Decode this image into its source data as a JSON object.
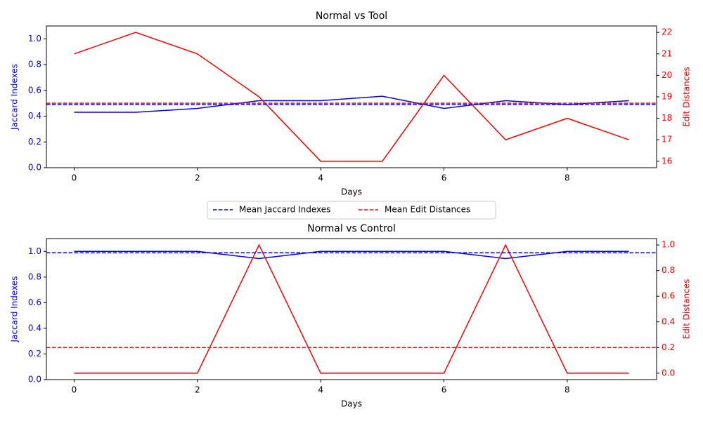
{
  "chart_data": [
    {
      "type": "line",
      "title": "Normal vs Tool",
      "xlabel": "Days",
      "ylabel": "Jaccard Indexes",
      "y2label": "Edit Distances",
      "x": [
        0,
        1,
        2,
        3,
        4,
        5,
        6,
        7,
        8,
        9
      ],
      "series": [
        {
          "name": "Jaccard Indexes",
          "color": "#0000ff",
          "axis": "y",
          "values": [
            0.43,
            0.43,
            0.46,
            0.52,
            0.52,
            0.555,
            0.46,
            0.52,
            0.49,
            0.52
          ]
        },
        {
          "name": "Edit Distances",
          "color": "#ff0000",
          "axis": "y2",
          "values": [
            21,
            22,
            21,
            19,
            16,
            16,
            20,
            17,
            18,
            17
          ]
        }
      ],
      "hlines": [
        {
          "name": "Mean Jaccard Indexes",
          "color": "#0000ff",
          "axis": "y",
          "value": 0.49
        },
        {
          "name": "Mean Edit Distances",
          "color": "#ff0000",
          "axis": "y2",
          "value": 18.7
        }
      ],
      "xlim": [
        -0.45,
        9.45
      ],
      "xticks": [
        0,
        2,
        4,
        6,
        8
      ],
      "ylim": [
        0,
        1.1
      ],
      "yticks": [
        {
          "value": 0,
          "label": "0.0"
        },
        0.2,
        0.4,
        0.6,
        0.8,
        {
          "value": 1,
          "label": "1.0"
        }
      ],
      "y2lim": [
        15.7,
        22.3
      ],
      "y2ticks": [
        16,
        17,
        18,
        19,
        20,
        21,
        22
      ]
    },
    {
      "type": "line",
      "title": "Normal vs Control",
      "xlabel": "Days",
      "ylabel": "Jaccard Indexes",
      "y2label": "Edit Distances",
      "x": [
        0,
        1,
        2,
        3,
        4,
        5,
        6,
        7,
        8,
        9
      ],
      "series": [
        {
          "color": "#0000ff",
          "axis": "y",
          "values": [
            1,
            1,
            1,
            0.944,
            1,
            1,
            1,
            0.944,
            1,
            1
          ]
        },
        {
          "color": "#ff0000",
          "axis": "y2",
          "values": [
            0,
            0,
            0,
            1,
            0,
            0,
            0,
            1,
            0,
            0
          ]
        }
      ],
      "hlines": [
        {
          "color": "#0000ff",
          "axis": "y",
          "value": 0.989
        },
        {
          "color": "#ff0000",
          "axis": "y2",
          "value": 0.2
        }
      ],
      "xlim": [
        -0.45,
        9.45
      ],
      "xticks": [
        0,
        2,
        4,
        6,
        8
      ],
      "ylim": [
        0,
        1.1
      ],
      "yticks": [
        {
          "value": 0,
          "label": "0.0"
        },
        0.2,
        0.4,
        0.6,
        0.8,
        {
          "value": 1,
          "label": "1.0"
        }
      ],
      "y2lim": [
        -0.05,
        1.05
      ],
      "y2ticks": [
        {
          "value": 0,
          "label": "0.0"
        },
        0.2,
        0.4,
        0.6,
        0.8,
        {
          "value": 1,
          "label": "1.0"
        }
      ]
    }
  ]
}
